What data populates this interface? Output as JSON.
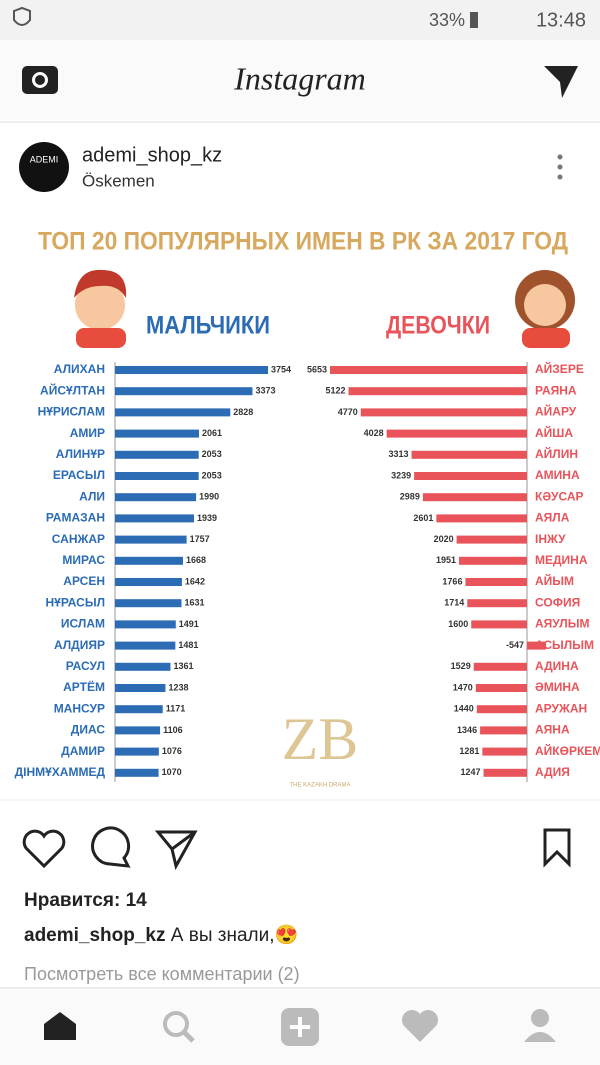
{
  "status_bar": {
    "battery": "33%",
    "time": "13:48"
  },
  "top_bar": {
    "logo": "Instagram"
  },
  "post": {
    "username": "ademi_shop_kz",
    "location": "Öskemen",
    "avatar_text": "ADEMI",
    "image": {
      "title": "ТОП 20 ПОПУЛЯРНЫХ ИМЕН В РК ЗА 2017 ГОД",
      "boys": {
        "label": "МАЛЬЧИКИ",
        "color": "#2b6cb5",
        "names": [
          "АЛИХАН",
          "АЙСҰЛТАН",
          "НҰРИСЛАМ",
          "АМИР",
          "АЛИНҰР",
          "ЕРАСЫЛ",
          "АЛИ",
          "РАМАЗАН",
          "САНЖАР",
          "МИРАС",
          "АРСЕН",
          "НҰРАСЫЛ",
          "ИСЛАМ",
          "АЛДИЯР",
          "РАСУЛ",
          "АРТЁМ",
          "МАНСУР",
          "ДИАС",
          "ДАМИР",
          "ДІНМҰХАММЕД"
        ],
        "values": [
          3754,
          3373,
          2828,
          2061,
          2053,
          2053,
          1990,
          1939,
          1757,
          1668,
          1642,
          1631,
          1491,
          1481,
          1361,
          1238,
          1171,
          1106,
          1076,
          1070
        ]
      },
      "girls": {
        "label": "ДЕВОЧКИ",
        "color": "#e8545a",
        "names": [
          "АЙЗЕРЕ",
          "РАЯНА",
          "АЙАРУ",
          "АЙША",
          "АЙЛИН",
          "АМИНА",
          "КӘУСАР",
          "АЯЛА",
          "ІНЖУ",
          "МЕДИНА",
          "АЙЫМ",
          "СОФИЯ",
          "АЯУЛЫМ",
          "АСЫЛЫМ",
          "АДИНА",
          "ӘМИНА",
          "АРУЖАН",
          "АЯНА",
          "АЙКӨРКЕМ",
          "АДИЯ"
        ],
        "values": [
          5653,
          5122,
          4770,
          4028,
          3313,
          3239,
          2989,
          2601,
          2020,
          1951,
          1766,
          1714,
          1600,
          -547,
          1529,
          1470,
          1440,
          1346,
          1281,
          1247
        ]
      },
      "watermark": "ZB",
      "watermark_sub": "THE KAZAKH DRAMA"
    },
    "likes": "Нравится: 14",
    "caption_user": "ademi_shop_kz",
    "caption_text": "А вы знали,😍",
    "comments_link": "Посмотреть все комментарии (2)"
  }
}
